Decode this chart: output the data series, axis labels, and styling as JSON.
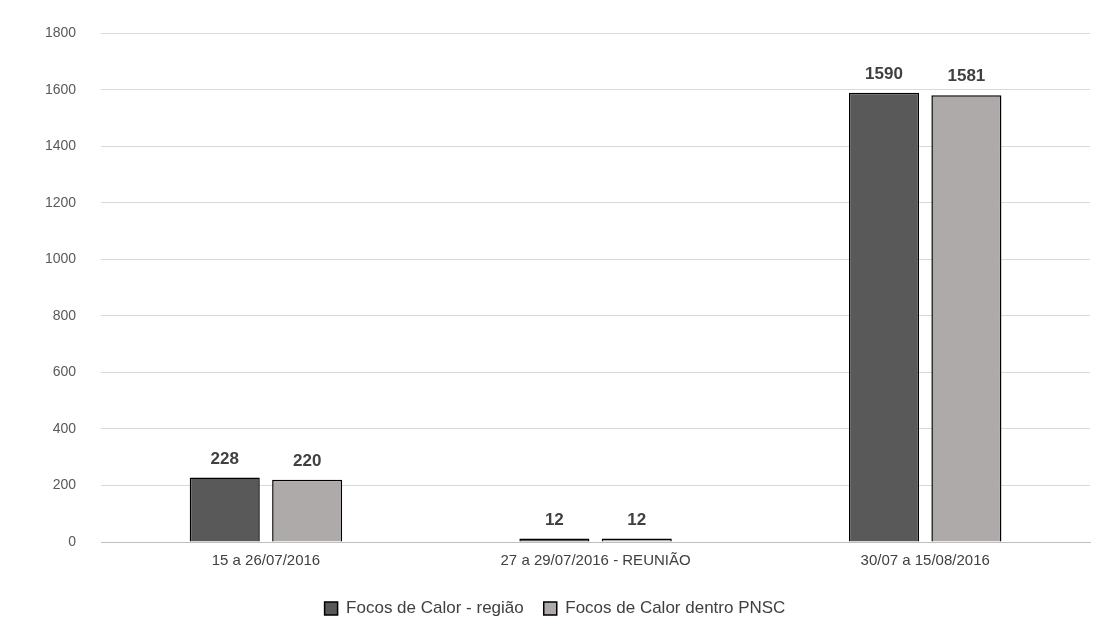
{
  "chart_data": {
    "type": "bar",
    "categories": [
      "15 a 26/07/2016",
      "27 a 29/07/2016 - REUNIÃO",
      "30/07 a 15/08/2016"
    ],
    "series": [
      {
        "name": "Focos de Calor - região",
        "color": "#595959",
        "values": [
          228,
          12,
          1590
        ]
      },
      {
        "name": "Focos de Calor dentro PNSC",
        "color": "#aeaaaa",
        "values": [
          220,
          12,
          1581
        ]
      }
    ],
    "ylim": [
      0,
      1800
    ],
    "yticks": [
      0,
      200,
      400,
      600,
      800,
      1000,
      1200,
      1400,
      1600,
      1800
    ],
    "grid": "y",
    "legend": "bottom",
    "data_labels": true
  }
}
